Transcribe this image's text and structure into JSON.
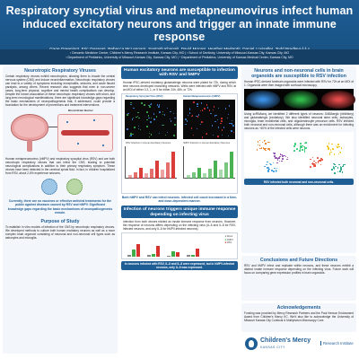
{
  "header": {
    "title_line1": "Respiratory syncytial virus and metapneumovirus infect human",
    "title_line2": "induced excitatory neurons and trigger an innate immune response",
    "authors": "Gage Greening¹, Eric Geanes¹, Rebecca McLennan¹, Santosh Khanal¹, David Moore¹, Heather Mwitanti¹, Daniel Louiselle¹, Todd Bradley¹·²·³·⁴",
    "affil_line1": "¹ Genomic Medicine Center, Children's Mercy Research Institute, Kansas City, MO | ² School of Dentistry, University of Missouri-Kansas City, Kansas City, MO",
    "affil_line2": "³ Department of Pediatrics, University of Missouri-Kansas City, Kansas City, MO | ⁴ Department of Pediatrics, University of Kansas Medical Center, Kansas City, MO"
  },
  "left": {
    "s1_title": "Neurotropic Respiratory Viruses",
    "s1_text": "Certain respiratory viruses exhibit neurotropism, allowing them to invade the central nervous system (CNS) and induce neuroinflammation. Neurotropic respiratory viruses can lead to a variety of symptoms including encephalitis, seizures, and acute flaccid paralysis, among others. Recent research also suggests that even in non-severe cases, long-term physical, cognitive and mental health complications can develop. Despite the known association of these neurotropic respiratory viruses with short- and long-term neurological manifestations, there are significant knowledge gaps regarding the basic mechanisms of neuropathogenesis that, if addressed, could provide a foundation for the development of preventions and treatment interventions.",
    "fig_label": "Blood-Brain Barrier",
    "s1_text2": "Human metapneumovirus (hMPV) and respiratory syncytial virus (RSV) and are both neurotropic respiratory viruses that can infect the CNS, leading to potential neurological complications in addition to their primary respiratory symptom. These viruses have been detected in the cerebral spinal fluid. In fact, in children hospitalized from RSV, about 2-6% experience seizures.",
    "highlight": "Currently, there are no vaccines or effective antiviral treatments for the public against diseases caused by RSV and hMPV. Significant knowledge gaps regarding the basic mechanisms of neuropathogenesis remain.",
    "s2_title": "Purpose of Study",
    "s2_text": "To establish in vitro models of infection of the CNS by neurotropic respiratory viruses. We developed methods to culture both human excitatory neurons as well as a more complex brain organoid consisting of neuronal and non-neuronal cell types such as astrocytes and microglia."
  },
  "middle": {
    "s1_title": "Human excitatory neurons are susceptible to infection with RSV and hMPV",
    "s1_text": "Human iPSC-derived excitatory glutamatergic neurons were plated for 72h, during which time neurons developed branching networks. Wells were infected with hMPV and RSV at an MOI of either 0.2, 1, or 5 for either 24h, 48h, or 72h.",
    "panel_a": "Respiratory Syncytial Virus (RSV)",
    "panel_b": "Human Metapneumovirus (hMPV)",
    "chart_label_a": "RSV Infection in Human Excitatory Neurons",
    "chart_label_b": "hMPV Infection in Human Excitatory Neurons",
    "caption": "Both hMPV and RSV can infect neurons. Infected cell count increased in a time- and dose-dependent manner.",
    "s2_title": "Infection of neurons triggers unique immune response depending on infecting virus",
    "s2_text": "Infection from both viruses elicited an innate immune response from neurons. However, the response of neurons differs depending on the infecting virus (IL-6 and IL-8 for RSV-infected neurons, and only IL-6 for hMPV-infected neurons).",
    "legend": [
      "Mock",
      "hMPV",
      "RSV"
    ],
    "caption2": "In neurons infected with RSV, IL-6 and IL-8 were expressed, but in hMPV-infected neurons, only IL-6 was expressed."
  },
  "right": {
    "s1_title": "Neurons and non-neuronal cells in brain organoids are susceptible to RSV infection",
    "s1_text": "Human iPSC-derived forebrain organoids were infected with RSV for 72h at an MOI of 1. Organoids were then imaged with confocal microscopy.",
    "s1_text2": "Using scRNAseq, we identified 2 different types of neurons: GABAergic (inhibitory) and glutamatergic (excitatory). We also identified neuronal stem cells, astrocytes, microglia, brain endothelial cells, and oligodendrocyte precursor cells. RSV infected both neuronal and non-neuronal cells, although there was an enrichment for infecting neurons as ~60% of the infected cells were neurons.",
    "caption": "RSV infected both neuronal and non-neuronal cells.",
    "s2_title": "Conclusions and Future Directions",
    "s2_text": "RSV and hMPV infect and replicate within neurons, and these neurons exhibit a distinct innate immune response depending on the infecting virus. Future work will focus on comparing gene expression profiles in brain organoids.",
    "s3_title": "Acknowledgements",
    "s3_text": "Funding was provided by Mercy Research Partners and the Paul Henson Endowment Award from Children's Mercy KC. We'd also like to acknowledge the University of Missouri Kansas City Confocal & Multiphoton Microscopy Core.",
    "logo_main": "Children's Mercy",
    "logo_sub": "KANSAS CITY",
    "logo_right": "Research Institute"
  },
  "colors": {
    "brand_blue": "#1f5d95",
    "bg_panel": "#f3f6fa",
    "green": "#3fae49",
    "red": "#d8322f"
  }
}
